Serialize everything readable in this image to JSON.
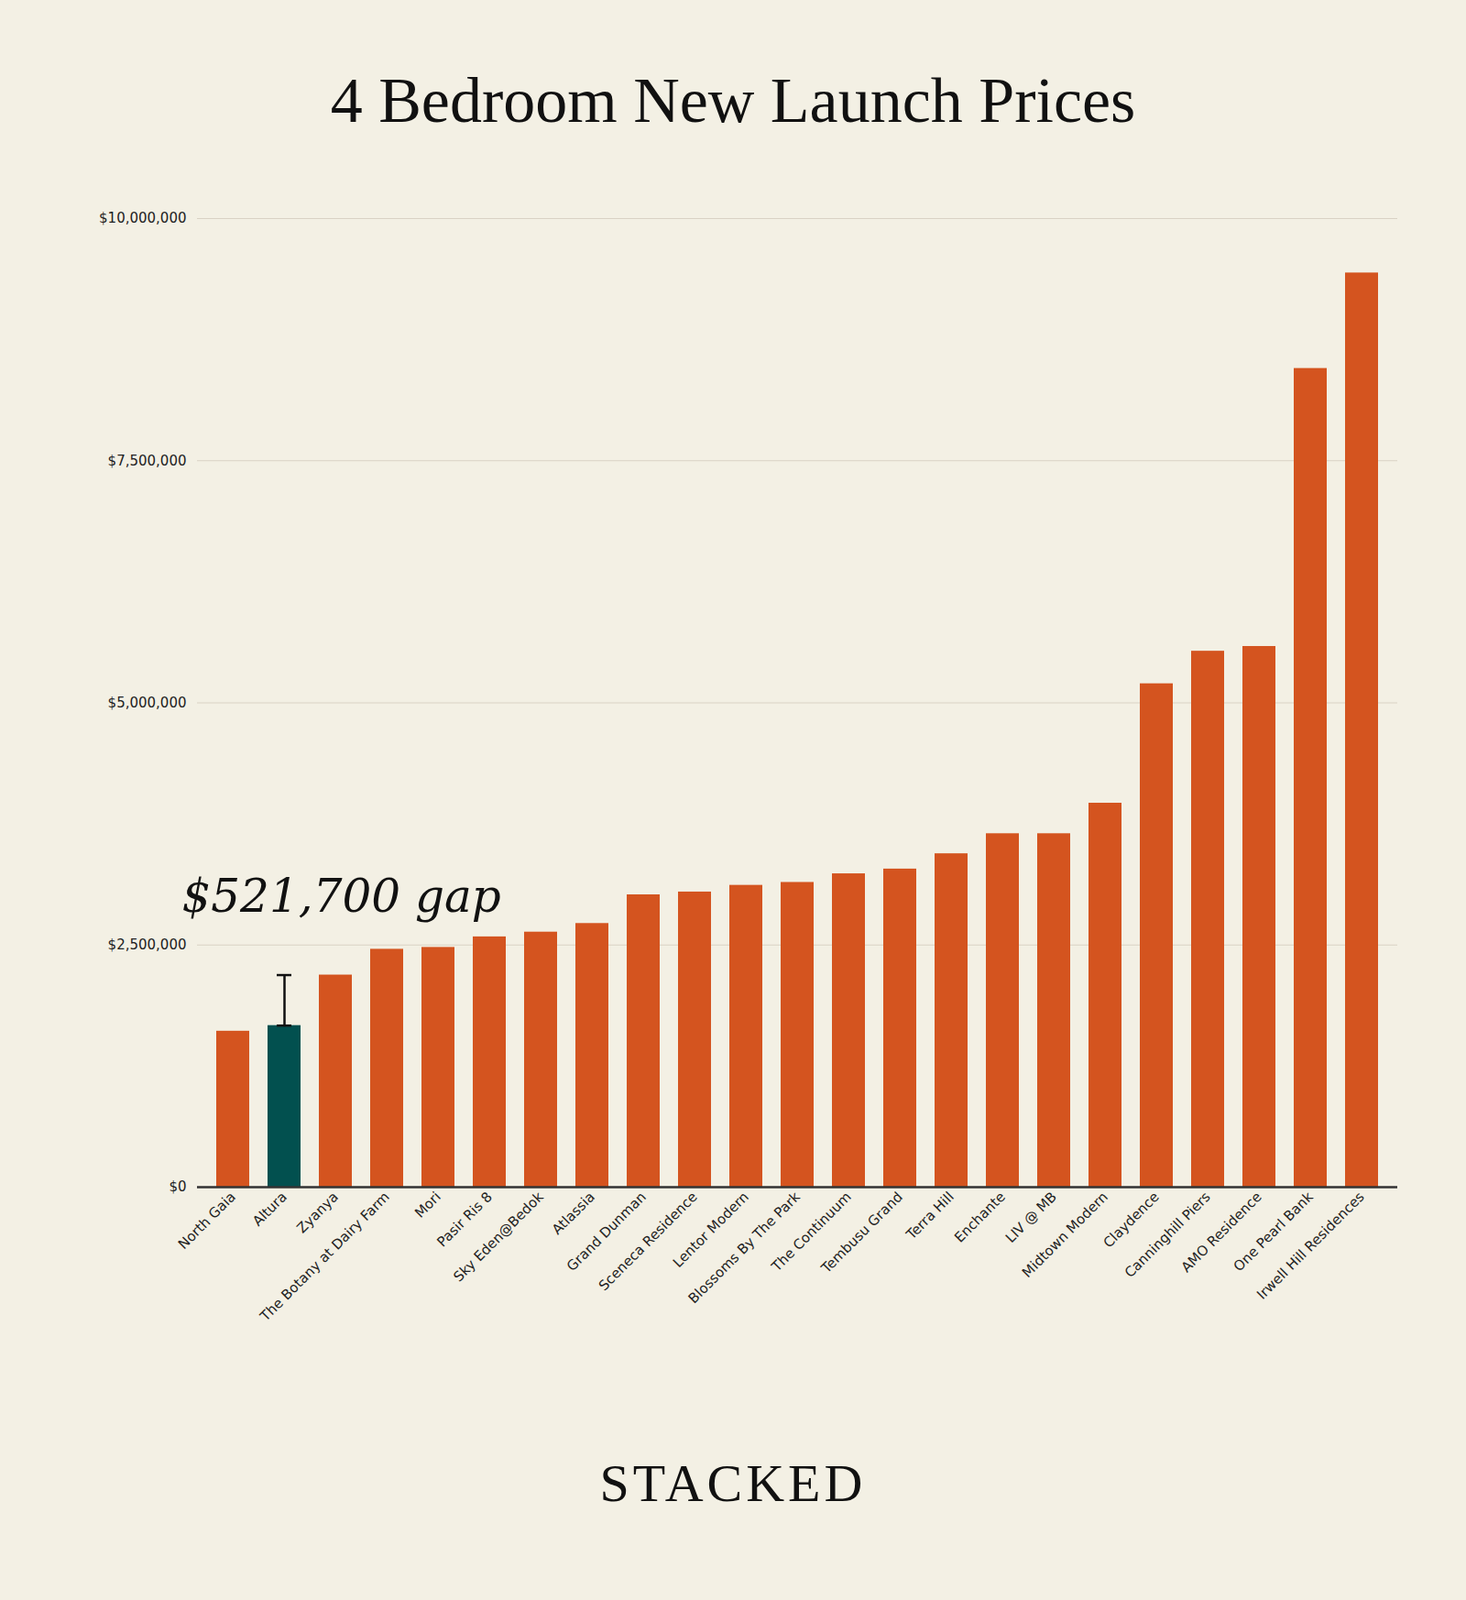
{
  "chart_data": {
    "type": "bar",
    "title": "4 Bedroom New Launch Prices",
    "categories": [
      "North Gaia",
      "Altura",
      "Zyanya",
      "The Botany at Dairy Farm",
      "Mori",
      "Pasir Ris 8",
      "Sky Eden@Bedok",
      "Atlassia",
      "Grand Dunman",
      "Sceneca Residence",
      "Lentor Modern",
      "Blossoms By The Park",
      "The Continuum",
      "Tembusu Grand",
      "Terra Hill",
      "Enchante",
      "LIV @ MB",
      "Midtown Modern",
      "Claydence",
      "Canninghill Piers",
      "AMO Residence",
      "One Pearl Bank",
      "Irwell Hill Residences"
    ],
    "values": [
      1610000,
      1668000,
      2189700,
      2456000,
      2475000,
      2584000,
      2633000,
      2722000,
      3018000,
      3047000,
      3116000,
      3146000,
      3235000,
      3284000,
      3442000,
      3649000,
      3649000,
      3964000,
      5197000,
      5533000,
      5582000,
      8452000,
      9438000
    ],
    "colors": [
      "#d4541f",
      "#02504f",
      "#d4541f",
      "#d4541f",
      "#d4541f",
      "#d4541f",
      "#d4541f",
      "#d4541f",
      "#d4541f",
      "#d4541f",
      "#d4541f",
      "#d4541f",
      "#d4541f",
      "#d4541f",
      "#d4541f",
      "#d4541f",
      "#d4541f",
      "#d4541f",
      "#d4541f",
      "#d4541f",
      "#d4541f",
      "#d4541f",
      "#d4541f"
    ],
    "ylim": [
      0,
      10000000
    ],
    "yticks": [
      {
        "value": 0,
        "label": "$0"
      },
      {
        "value": 2500000,
        "label": "$2,500,000"
      },
      {
        "value": 5000000,
        "label": "$5,000,000"
      },
      {
        "value": 7500000,
        "label": "$7,500,000"
      },
      {
        "value": 10000000,
        "label": "$10,000,000"
      }
    ],
    "grid": true,
    "annotations": [
      {
        "text": "$521,700 gap",
        "category": "Altura",
        "from": 1668000,
        "to": 2189700
      }
    ],
    "footer": "STACKED"
  }
}
